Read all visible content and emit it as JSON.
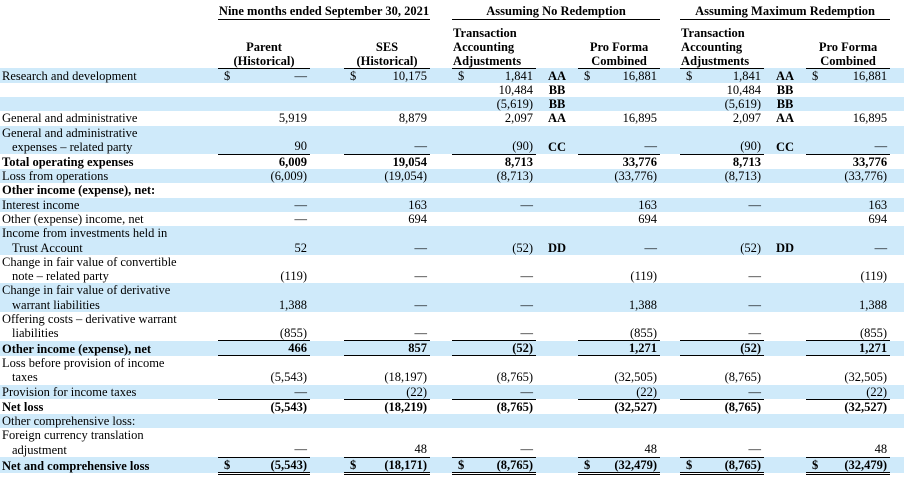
{
  "colors": {
    "row_highlight": "#cfeafa",
    "text": "#000000",
    "rule": "#000000"
  },
  "header": {
    "period": "Nine months ended September 30, 2021",
    "scenario_no_redemption": "Assuming No Redemption",
    "scenario_max_redemption": "Assuming Maximum Redemption",
    "parent_line1": "Parent",
    "parent_line2": "(Historical)",
    "ses_line1": "SES",
    "ses_line2": "(Historical)",
    "adjustments_line1": "Transaction",
    "adjustments_line2": "Accounting",
    "adjustments_line3": "Adjustments",
    "proforma_line1": "Pro Forma",
    "proforma_line2": "Combined"
  },
  "rows": [
    {
      "label": [
        "Research and development"
      ],
      "shaded": true,
      "bold": false,
      "rule": "none",
      "cells": [
        {
          "d": "$",
          "v": "—"
        },
        {
          "d": "$",
          "v": "10,175"
        },
        {
          "d": "$",
          "v": "1,841"
        },
        "AA",
        {
          "d": "$",
          "v": "16,881"
        },
        {
          "d": "$",
          "v": "1,841"
        },
        "AA",
        {
          "d": "$",
          "v": "16,881"
        }
      ]
    },
    {
      "label": [],
      "shaded": false,
      "bold": false,
      "rule": "none",
      "cells": [
        null,
        null,
        {
          "v": "10,484"
        },
        "BB",
        null,
        {
          "v": "10,484"
        },
        "BB",
        null
      ]
    },
    {
      "label": [],
      "shaded": true,
      "bold": false,
      "rule": "none",
      "cells": [
        null,
        null,
        {
          "v": "(5,619)"
        },
        "BB",
        null,
        {
          "v": "(5,619)"
        },
        "BB",
        null
      ]
    },
    {
      "label": [
        "General and administrative"
      ],
      "shaded": false,
      "bold": false,
      "rule": "none",
      "cells": [
        {
          "v": "5,919"
        },
        {
          "v": "8,879"
        },
        {
          "v": "2,097"
        },
        "AA",
        {
          "v": "16,895"
        },
        {
          "v": "2,097"
        },
        "AA",
        {
          "v": "16,895"
        }
      ]
    },
    {
      "label": [
        "General and administrative",
        "expenses – related party"
      ],
      "shaded": true,
      "bold": false,
      "rule": "single",
      "cells": [
        {
          "v": "90"
        },
        {
          "v": "—"
        },
        {
          "v": "(90)"
        },
        "CC",
        {
          "v": "—"
        },
        {
          "v": "(90)"
        },
        "CC",
        {
          "v": "—"
        }
      ]
    },
    {
      "label": [
        "Total operating expenses"
      ],
      "shaded": false,
      "bold": true,
      "rule": "none",
      "cells": [
        {
          "v": "6,009"
        },
        {
          "v": "19,054"
        },
        {
          "v": "8,713"
        },
        "",
        {
          "v": "33,776"
        },
        {
          "v": "8,713"
        },
        "",
        {
          "v": "33,776"
        }
      ]
    },
    {
      "label": [
        "Loss from operations"
      ],
      "shaded": true,
      "bold": false,
      "rule": "none",
      "cells": [
        {
          "v": "(6,009)"
        },
        {
          "v": "(19,054)"
        },
        {
          "v": "(8,713)"
        },
        "",
        {
          "v": "(33,776)"
        },
        {
          "v": "(8,713)"
        },
        "",
        {
          "v": "(33,776)"
        }
      ]
    },
    {
      "label": [
        "Other income (expense), net:"
      ],
      "shaded": false,
      "bold": true,
      "rule": "none",
      "cells": [
        null,
        null,
        null,
        "",
        null,
        null,
        "",
        null
      ]
    },
    {
      "label": [
        "Interest income"
      ],
      "shaded": true,
      "bold": false,
      "rule": "none",
      "cells": [
        {
          "v": "—"
        },
        {
          "v": "163"
        },
        {
          "v": "—"
        },
        "",
        {
          "v": "163"
        },
        {
          "v": "—"
        },
        "",
        {
          "v": "163"
        }
      ]
    },
    {
      "label": [
        "Other (expense) income, net"
      ],
      "shaded": false,
      "bold": false,
      "rule": "none",
      "cells": [
        {
          "v": "—"
        },
        {
          "v": "694"
        },
        null,
        "",
        {
          "v": "694"
        },
        null,
        "",
        {
          "v": "694"
        }
      ]
    },
    {
      "label": [
        "Income from investments held in",
        "Trust Account"
      ],
      "shaded": true,
      "bold": false,
      "rule": "none",
      "cells": [
        {
          "v": "52"
        },
        {
          "v": "—"
        },
        {
          "v": "(52)"
        },
        "DD",
        {
          "v": "—"
        },
        {
          "v": "(52)"
        },
        "DD",
        {
          "v": "—"
        }
      ]
    },
    {
      "label": [
        "Change in fair value of convertible",
        "note – related party"
      ],
      "shaded": false,
      "bold": false,
      "rule": "none",
      "cells": [
        {
          "v": "(119)"
        },
        {
          "v": "—"
        },
        {
          "v": "—"
        },
        "",
        {
          "v": "(119)"
        },
        {
          "v": "—"
        },
        "",
        {
          "v": "(119)"
        }
      ]
    },
    {
      "label": [
        "Change in fair value of derivative",
        "warrant liabilities"
      ],
      "shaded": true,
      "bold": false,
      "rule": "none",
      "cells": [
        {
          "v": "1,388"
        },
        {
          "v": "—"
        },
        {
          "v": "—"
        },
        "",
        {
          "v": "1,388"
        },
        {
          "v": "—"
        },
        "",
        {
          "v": "1,388"
        }
      ]
    },
    {
      "label": [
        "Offering costs – derivative warrant",
        "liabilities"
      ],
      "shaded": false,
      "bold": false,
      "rule": "single",
      "cells": [
        {
          "v": "(855)"
        },
        {
          "v": "—"
        },
        {
          "v": "—"
        },
        "",
        {
          "v": "(855)"
        },
        {
          "v": "—"
        },
        "",
        {
          "v": "(855)"
        }
      ]
    },
    {
      "label": [
        "Other income (expense), net"
      ],
      "shaded": true,
      "bold": true,
      "rule": "single",
      "cells": [
        {
          "v": "466"
        },
        {
          "v": "857"
        },
        {
          "v": "(52)"
        },
        "",
        {
          "v": "1,271"
        },
        {
          "v": "(52)"
        },
        "",
        {
          "v": "1,271"
        }
      ]
    },
    {
      "label": [
        "Loss before provision of income",
        "taxes"
      ],
      "shaded": false,
      "bold": false,
      "rule": "none",
      "cells": [
        {
          "v": "(5,543)"
        },
        {
          "v": "(18,197)"
        },
        {
          "v": "(8,765)"
        },
        "",
        {
          "v": "(32,505)"
        },
        {
          "v": "(8,765)"
        },
        "",
        {
          "v": "(32,505)"
        }
      ]
    },
    {
      "label": [
        "Provision for income taxes"
      ],
      "shaded": true,
      "bold": false,
      "rule": "single",
      "cells": [
        {
          "v": "—"
        },
        {
          "v": "(22)"
        },
        {
          "v": "—"
        },
        "",
        {
          "v": "(22)"
        },
        {
          "v": "—"
        },
        "",
        {
          "v": "(22)"
        }
      ]
    },
    {
      "label": [
        "Net loss"
      ],
      "shaded": false,
      "bold": true,
      "rule": "none",
      "cells": [
        {
          "v": "(5,543)"
        },
        {
          "v": "(18,219)"
        },
        {
          "v": "(8,765)"
        },
        "",
        {
          "v": "(32,527)"
        },
        {
          "v": "(8,765)"
        },
        "",
        {
          "v": "(32,527)"
        }
      ]
    },
    {
      "label": [
        "Other comprehensive loss:"
      ],
      "shaded": true,
      "bold": false,
      "rule": "none",
      "cells": [
        null,
        null,
        null,
        "",
        null,
        null,
        "",
        null
      ]
    },
    {
      "label": [
        "Foreign currency translation",
        "adjustment"
      ],
      "shaded": false,
      "bold": false,
      "rule": "single",
      "cells": [
        {
          "v": "—"
        },
        {
          "v": "48"
        },
        {
          "v": "—"
        },
        "",
        {
          "v": "48"
        },
        {
          "v": "—"
        },
        "",
        {
          "v": "48"
        }
      ]
    },
    {
      "label": [
        "Net and comprehensive loss"
      ],
      "shaded": true,
      "bold": true,
      "rule": "double",
      "cells": [
        {
          "d": "$",
          "v": "(5,543)"
        },
        {
          "d": "$",
          "v": "(18,171)"
        },
        {
          "d": "$",
          "v": "(8,765)"
        },
        "",
        {
          "d": "$",
          "v": "(32,479)"
        },
        {
          "d": "$",
          "v": "(8,765)"
        },
        "",
        {
          "d": "$",
          "v": "(32,479)"
        }
      ]
    }
  ]
}
